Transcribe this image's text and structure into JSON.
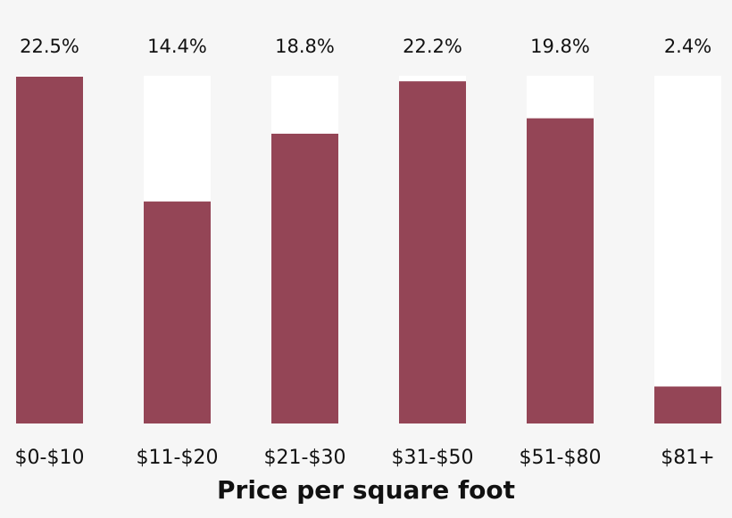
{
  "chart_data": {
    "type": "bar",
    "categories": [
      "$0-$10",
      "$11-$20",
      "$21-$30",
      "$31-$50",
      "$51-$80",
      "$81+"
    ],
    "values": [
      22.5,
      14.4,
      18.8,
      22.2,
      19.8,
      2.4
    ],
    "value_labels": [
      "22.5%",
      "14.4%",
      "18.8%",
      "22.2%",
      "19.8%",
      "2.4%"
    ],
    "color": "#944556",
    "ylim": [
      0,
      22.5
    ],
    "xlabel": "Price per square foot"
  }
}
